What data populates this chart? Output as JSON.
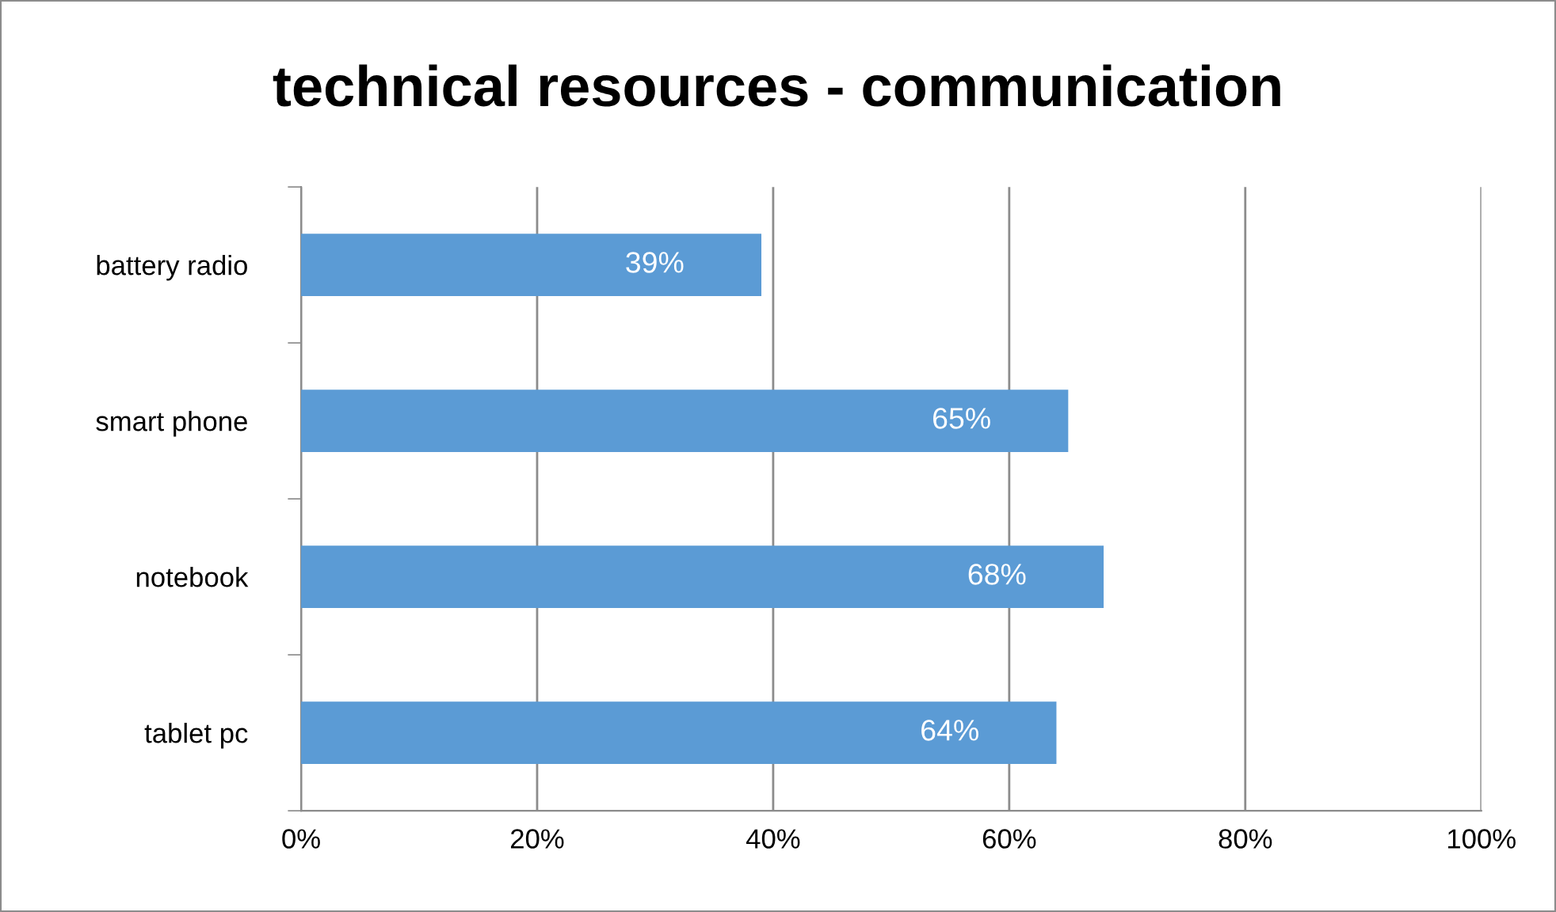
{
  "chart_data": {
    "type": "bar",
    "orientation": "horizontal",
    "title": "technical resources - communication",
    "categories": [
      "battery radio",
      "smart phone",
      "notebook",
      "tablet pc"
    ],
    "values": [
      39,
      65,
      68,
      64
    ],
    "value_labels": [
      "39%",
      "65%",
      "68%",
      "64%"
    ],
    "color": "#5b9bd5",
    "xlim": [
      0,
      100
    ],
    "xticks": [
      {
        "value": 0,
        "label": "0%"
      },
      {
        "value": 20,
        "label": "20%"
      },
      {
        "value": 40,
        "label": "40%"
      },
      {
        "value": 60,
        "label": "60%"
      },
      {
        "value": 80,
        "label": "80%"
      },
      {
        "value": 100,
        "label": "100%"
      }
    ],
    "grid": "x",
    "legend": false
  }
}
